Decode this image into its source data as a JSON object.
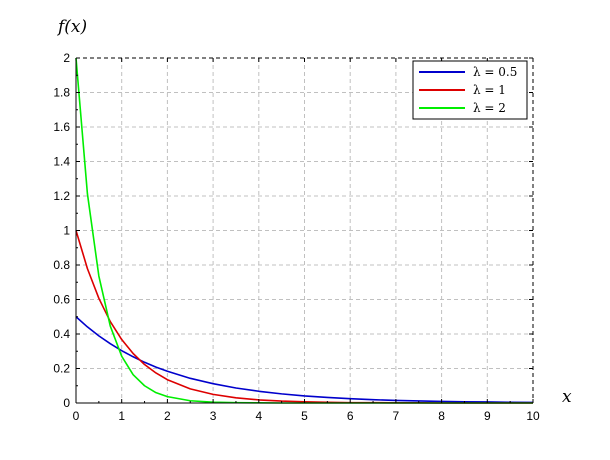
{
  "chart_data": {
    "type": "line",
    "title": "",
    "xlabel": "x",
    "ylabel": "f(x)",
    "xlim": [
      0,
      10
    ],
    "ylim": [
      0,
      2
    ],
    "grid": true,
    "legend_position": "top-right",
    "x_ticks": [
      "0",
      "1",
      "2",
      "3",
      "4",
      "5",
      "6",
      "7",
      "8",
      "9",
      "10"
    ],
    "y_ticks": [
      "0",
      "0.2",
      "0.4",
      "0.6",
      "0.8",
      "1",
      "1.2",
      "1.4",
      "1.6",
      "1.8",
      "2"
    ],
    "x": [
      0,
      0.25,
      0.5,
      0.75,
      1,
      1.25,
      1.5,
      1.75,
      2,
      2.5,
      3,
      3.5,
      4,
      4.5,
      5,
      5.5,
      6,
      6.5,
      7,
      7.5,
      8,
      8.5,
      9,
      9.5,
      10
    ],
    "series": [
      {
        "name": "λ = 0.5",
        "color": "#0000cc",
        "values": [
          0.5,
          0.441,
          0.389,
          0.344,
          0.303,
          0.268,
          0.236,
          0.208,
          0.184,
          0.143,
          0.112,
          0.087,
          0.068,
          0.053,
          0.041,
          0.032,
          0.025,
          0.019,
          0.015,
          0.012,
          0.009,
          0.007,
          0.006,
          0.004,
          0.003
        ]
      },
      {
        "name": "λ = 1",
        "color": "#dd0000",
        "values": [
          1.0,
          0.779,
          0.607,
          0.472,
          0.368,
          0.287,
          0.223,
          0.174,
          0.135,
          0.082,
          0.05,
          0.03,
          0.018,
          0.011,
          0.007,
          0.004,
          0.002,
          0.002,
          0.001,
          0.001,
          0.0,
          0.0,
          0.0,
          0.0,
          0.0
        ]
      },
      {
        "name": "λ = 2",
        "color": "#00ee00",
        "values": [
          2.0,
          1.213,
          0.736,
          0.446,
          0.271,
          0.164,
          0.1,
          0.06,
          0.037,
          0.013,
          0.005,
          0.002,
          0.001,
          0.0,
          0.0,
          0.0,
          0.0,
          0.0,
          0.0,
          0.0,
          0.0,
          0.0,
          0.0,
          0.0,
          0.0
        ]
      }
    ]
  }
}
